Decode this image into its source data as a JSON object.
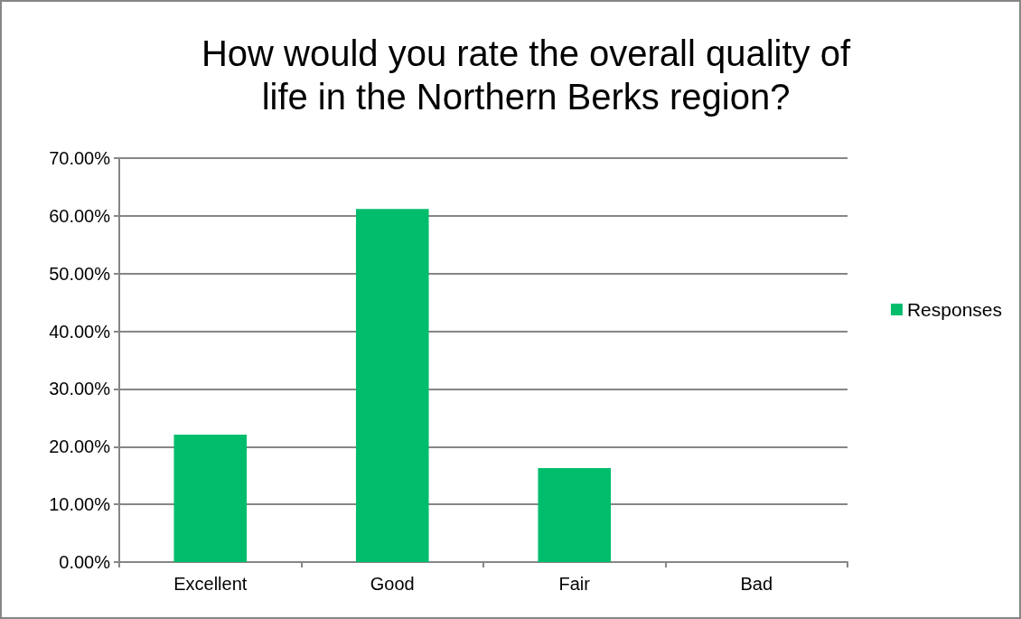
{
  "chart_data": {
    "type": "bar",
    "title": "How would you rate the overall quality of\nlife in the Northern Berks region?",
    "categories": [
      "Excellent",
      "Good",
      "Fair",
      "Bad"
    ],
    "series": [
      {
        "name": "Responses",
        "color": "#00bd6c",
        "values": [
          22.1,
          61.2,
          16.3,
          0
        ]
      }
    ],
    "ylim": [
      0,
      70
    ],
    "yticks": [
      {
        "value": 0,
        "label": "0.00%"
      },
      {
        "value": 10,
        "label": "10.00%"
      },
      {
        "value": 20,
        "label": "20.00%"
      },
      {
        "value": 30,
        "label": "30.00%"
      },
      {
        "value": 40,
        "label": "40.00%"
      },
      {
        "value": 50,
        "label": "50.00%"
      },
      {
        "value": 60,
        "label": "60.00%"
      },
      {
        "value": 70,
        "label": "70.00%"
      }
    ],
    "grid": "y",
    "legend": "right"
  }
}
